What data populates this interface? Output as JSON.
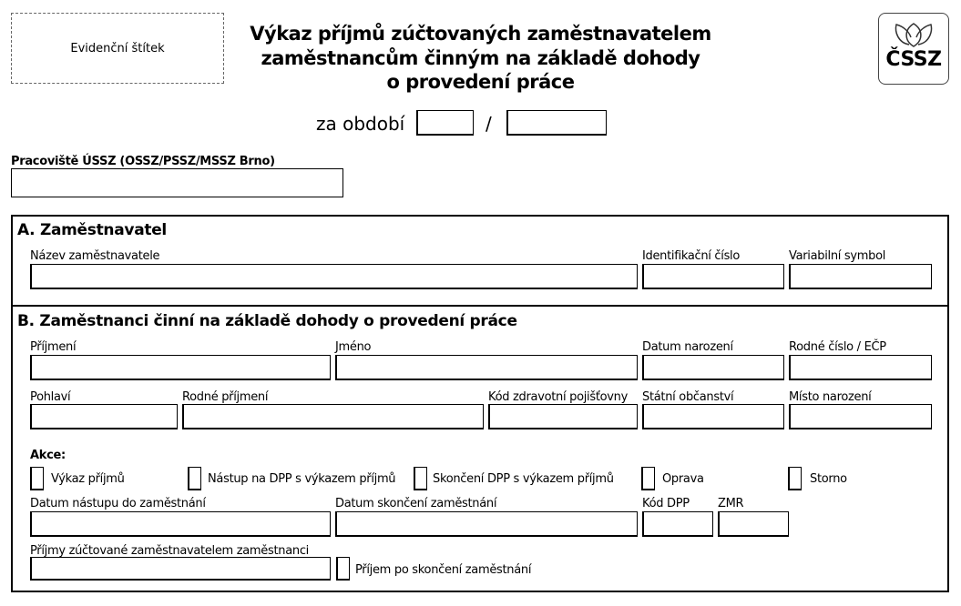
{
  "header": {
    "label_box": "Evidenční štítek",
    "title_lines": [
      "Výkaz příjmů zúčtovaných zaměstnavatelem",
      "zaměstnancům činným na základě dohody",
      "o provedení práce"
    ],
    "logo": "ČSSZ",
    "period_label": "za období",
    "period_sep": "/"
  },
  "workplace": {
    "label": "Pracoviště ÚSSZ (OSSZ/PSSZ/MSSZ Brno)"
  },
  "sectionA": {
    "title": "A. Zaměstnavatel",
    "fields": [
      "Název zaměstnavatele",
      "Identifikační číslo",
      "Variabilní symbol"
    ]
  },
  "sectionB": {
    "title": "B. Zaměstnanci činní na základě dohody o provedení práce",
    "row1": [
      "Příjmení",
      "Jméno",
      "Datum narození",
      "Rodné číslo / EČP"
    ],
    "row2": [
      "Pohlaví",
      "Rodné příjmení",
      "Kód zdravotní pojišťovny",
      "Státní občanství",
      "Místo narození"
    ],
    "actions_label": "Akce:",
    "actions": [
      "Výkaz příjmů",
      "Nástup na DPP s výkazem příjmů",
      "Skončení DPP s výkazem příjmů",
      "Oprava",
      "Storno"
    ],
    "row3": [
      "Datum nástupu do zaměstnání",
      "Datum skončení zaměstnání",
      "Kód DPP",
      "ZMR"
    ],
    "income_label": "Příjmy zúčtované zaměstnavatelem zaměstnanci",
    "after_end_label": "Příjem po skončení zaměstnání"
  }
}
